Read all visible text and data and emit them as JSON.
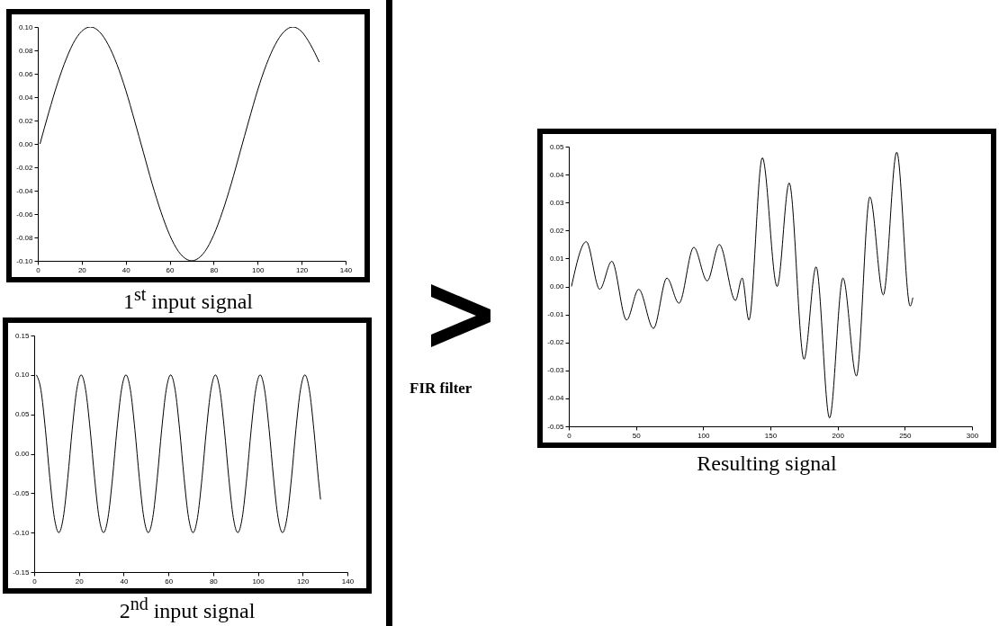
{
  "chart_data": [
    {
      "type": "line",
      "xlabel": "1$^{st}$ input signal",
      "xlim": [
        0,
        140
      ],
      "xticks": [
        0,
        20,
        40,
        60,
        80,
        100,
        120,
        140
      ],
      "ylim": [
        -0.1,
        0.1
      ],
      "yticks": [
        {
          "value": -0.1,
          "label": "-0.10"
        },
        {
          "value": -0.08,
          "label": "-0.08"
        },
        {
          "value": -0.06,
          "label": "-0.06"
        },
        {
          "value": -0.04,
          "label": "-0.04"
        },
        {
          "value": -0.02,
          "label": "-0.02"
        },
        {
          "value": 0,
          "label": "0.00"
        },
        {
          "value": 0.02,
          "label": "0.02"
        },
        {
          "value": 0.04,
          "label": "0.04"
        },
        {
          "value": 0.06,
          "label": "0.06"
        },
        {
          "value": 0.08,
          "label": "0.08"
        },
        {
          "value": 0.1,
          "label": "0.10"
        }
      ],
      "x": [
        1,
        5,
        9,
        13,
        17,
        21,
        24,
        28,
        32,
        36,
        40,
        44,
        48,
        52,
        56,
        60,
        64,
        68,
        70,
        72,
        76,
        80,
        84,
        88,
        92,
        96,
        100,
        104,
        108,
        112,
        116,
        120,
        124,
        128
      ],
      "series": [
        {
          "color": "#000000",
          "values": [
            0,
            0.027,
            0.052,
            0.073,
            0.089,
            0.098,
            0.1,
            0.096,
            0.085,
            0.068,
            0.046,
            0.02,
            -0.007,
            -0.034,
            -0.058,
            -0.078,
            -0.092,
            -0.099,
            -0.1,
            -0.099,
            -0.092,
            -0.078,
            -0.058,
            -0.034,
            -0.007,
            0.02,
            0.046,
            0.068,
            0.085,
            0.096,
            0.1,
            0.096,
            0.085,
            0.07
          ]
        }
      ]
    },
    {
      "type": "line",
      "xlabel": "2$^{nd}$ input signal",
      "xlim": [
        0,
        140
      ],
      "xticks": [
        0,
        20,
        40,
        60,
        80,
        100,
        120,
        140
      ],
      "ylim": [
        -0.15,
        0.15
      ],
      "yticks": [
        {
          "value": -0.15,
          "label": "-0.15"
        },
        {
          "value": -0.1,
          "label": "-0.10"
        },
        {
          "value": -0.05,
          "label": "-0.05"
        },
        {
          "value": 0,
          "label": "0.00"
        },
        {
          "value": 0.05,
          "label": "0.05"
        },
        {
          "value": 0.1,
          "label": "0.10"
        },
        {
          "value": 0.15,
          "label": "0.15"
        }
      ],
      "x": [
        1,
        3,
        5,
        7,
        9,
        11,
        13,
        15,
        17,
        19,
        21,
        23,
        25,
        27,
        29,
        31,
        33,
        35,
        37,
        39,
        41,
        43,
        45,
        47,
        49,
        51,
        53,
        55,
        57,
        59,
        61,
        63,
        65,
        67,
        69,
        71,
        73,
        75,
        77,
        79,
        81,
        83,
        85,
        87,
        89,
        91,
        93,
        95,
        97,
        99,
        101,
        103,
        105,
        107,
        109,
        111,
        113,
        115,
        117,
        119,
        121,
        123,
        125,
        127,
        128
      ],
      "series": [
        {
          "color": "#000000",
          "values": [
            0.1,
            0.081,
            0.031,
            -0.031,
            -0.081,
            -0.1,
            -0.081,
            -0.031,
            0.031,
            0.081,
            0.1,
            0.081,
            0.031,
            -0.031,
            -0.081,
            -0.1,
            -0.081,
            -0.031,
            0.031,
            0.081,
            0.1,
            0.081,
            0.031,
            -0.031,
            -0.081,
            -0.1,
            -0.081,
            -0.031,
            0.031,
            0.081,
            0.1,
            0.081,
            0.031,
            -0.031,
            -0.081,
            -0.1,
            -0.081,
            -0.031,
            0.031,
            0.081,
            0.1,
            0.081,
            0.031,
            -0.031,
            -0.081,
            -0.1,
            -0.081,
            -0.031,
            0.031,
            0.081,
            0.1,
            0.081,
            0.031,
            -0.031,
            -0.081,
            -0.1,
            -0.081,
            -0.031,
            0.031,
            0.081,
            0.1,
            0.081,
            0.031,
            -0.031,
            -0.058
          ]
        }
      ]
    },
    {
      "type": "line",
      "xlabel": "Resulting signal",
      "annotations": [
        "FIR filter"
      ],
      "xlim": [
        0,
        300
      ],
      "xticks": [
        0,
        50,
        100,
        150,
        200,
        250,
        300
      ],
      "ylim": [
        -0.05,
        0.05
      ],
      "yticks": [
        {
          "value": -0.05,
          "label": "-0.05"
        },
        {
          "value": -0.04,
          "label": "-0.04"
        },
        {
          "value": -0.03,
          "label": "-0.03"
        },
        {
          "value": -0.02,
          "label": "-0.02"
        },
        {
          "value": -0.01,
          "label": "-0.01"
        },
        {
          "value": 0,
          "label": "0.00"
        },
        {
          "value": 0.01,
          "label": "0.01"
        },
        {
          "value": 0.02,
          "label": "0.02"
        },
        {
          "value": 0.03,
          "label": "0.03"
        },
        {
          "value": 0.04,
          "label": "0.04"
        },
        {
          "value": 0.05,
          "label": "0.05"
        }
      ],
      "x": [
        2,
        13,
        23,
        32,
        43,
        52,
        63,
        73,
        82,
        93,
        103,
        112,
        124,
        129,
        134,
        144,
        155,
        164,
        175,
        184,
        194,
        204,
        214,
        224,
        234,
        244,
        254,
        256
      ],
      "series": [
        {
          "color": "#000000",
          "values": [
            0,
            0.016,
            -0.001,
            0.009,
            -0.012,
            -0.001,
            -0.015,
            0.003,
            -0.006,
            0.014,
            0.002,
            0.015,
            -0.005,
            0.003,
            -0.012,
            0.046,
            0,
            0.037,
            -0.026,
            0.007,
            -0.047,
            0.003,
            -0.032,
            0.032,
            -0.003,
            0.048,
            -0.007,
            -0.004
          ]
        }
      ]
    }
  ]
}
